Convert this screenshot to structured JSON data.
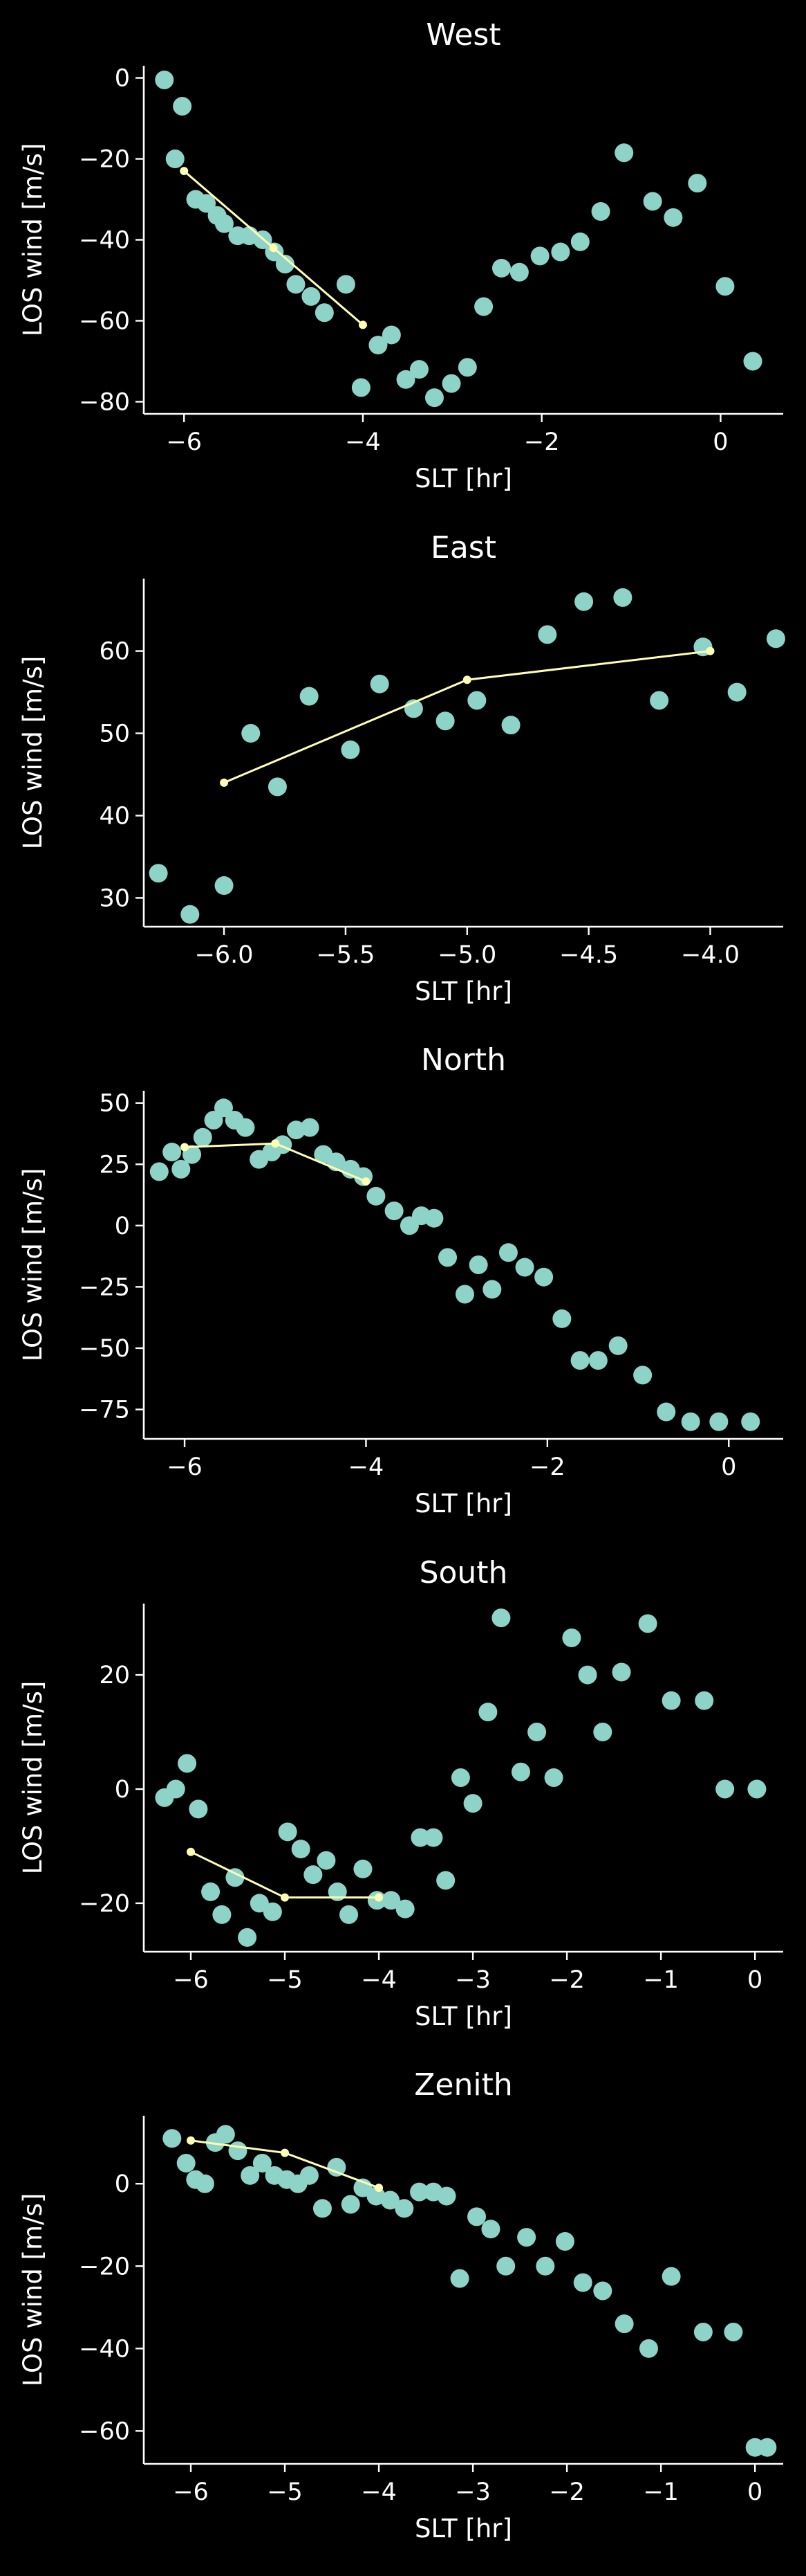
{
  "colors": {
    "background": "#000000",
    "scatter": "#8dd3c7",
    "line": "#ffffb3",
    "text": "#ffffff"
  },
  "chart_data": [
    {
      "type": "scatter",
      "title": "West",
      "xlabel": "SLT [hr]",
      "ylabel": "LOS wind [m/s]",
      "xlim": [
        -6.45,
        0.7
      ],
      "ylim": [
        -83,
        3
      ],
      "xticks": [
        -6,
        -4,
        -2,
        0
      ],
      "yticks": [
        -80,
        -60,
        -40,
        -20,
        0
      ],
      "series": [
        {
          "kind": "scatter",
          "x": [
            -6.22,
            -6.02,
            -6.1,
            -5.87,
            -5.75,
            -5.63,
            -5.55,
            -5.4,
            -5.27,
            -5.12,
            -4.99,
            -4.87,
            -4.75,
            -4.58,
            -4.43,
            -4.19,
            -4.02,
            -3.83,
            -3.68,
            -3.52,
            -3.37,
            -3.2,
            -3.01,
            -2.83,
            -2.65,
            -2.45,
            -2.25,
            -2.02,
            -1.79,
            -1.57,
            -1.34,
            -1.08,
            -0.76,
            -0.53,
            -0.26,
            0.05,
            0.36
          ],
          "y": [
            -0.5,
            -7,
            -20,
            -30,
            -31,
            -34,
            -36,
            -39,
            -39,
            -40,
            -43,
            -46,
            -51,
            -54,
            -58,
            -51,
            -76.5,
            -66,
            -63.5,
            -74.5,
            -72,
            -79,
            -75.5,
            -71.5,
            -56.5,
            -47,
            -48,
            -44,
            -43,
            -40.5,
            -33,
            -18.5,
            -30.5,
            -34.5,
            -26,
            -51.5,
            -70
          ]
        },
        {
          "kind": "line",
          "x": [
            -6.0,
            -5.0,
            -4.0
          ],
          "y": [
            -23,
            -42,
            -61
          ]
        }
      ]
    },
    {
      "type": "scatter",
      "title": "East",
      "xlabel": "SLT [hr]",
      "ylabel": "LOS wind [m/s]",
      "xlim": [
        -6.33,
        -3.7
      ],
      "ylim": [
        26.5,
        68.8
      ],
      "xticks": [
        -6.0,
        -5.5,
        -5.0,
        -4.5,
        -4.0
      ],
      "xtick_labels": [
        "−6.0",
        "−5.5",
        "−5.0",
        "−4.5",
        "−4.0"
      ],
      "yticks": [
        30,
        40,
        50,
        60
      ],
      "series": [
        {
          "kind": "scatter",
          "x": [
            -6.27,
            -6.14,
            -6.0,
            -5.89,
            -5.78,
            -5.65,
            -5.48,
            -5.36,
            -5.22,
            -5.09,
            -4.96,
            -4.82,
            -4.67,
            -4.52,
            -4.36,
            -4.21,
            -4.03,
            -3.89,
            -3.73
          ],
          "y": [
            33,
            28,
            31.5,
            50,
            43.5,
            54.5,
            48,
            56,
            53,
            51.5,
            54,
            51,
            62,
            66,
            66.5,
            54,
            60.5,
            55,
            61.5
          ]
        },
        {
          "kind": "line",
          "x": [
            -6.0,
            -5.0,
            -4.0
          ],
          "y": [
            44,
            56.5,
            60
          ]
        }
      ]
    },
    {
      "type": "scatter",
      "title": "North",
      "xlabel": "SLT [hr]",
      "ylabel": "LOS wind [m/s]",
      "xlim": [
        -6.45,
        0.6
      ],
      "ylim": [
        -87,
        55
      ],
      "xticks": [
        -6,
        -4,
        -2,
        0
      ],
      "yticks": [
        -75,
        -50,
        -25,
        0,
        25,
        50
      ],
      "series": [
        {
          "kind": "scatter",
          "x": [
            -6.28,
            -6.14,
            -6.04,
            -5.92,
            -5.8,
            -5.68,
            -5.57,
            -5.45,
            -5.33,
            -5.18,
            -5.04,
            -4.92,
            -4.77,
            -4.62,
            -4.47,
            -4.33,
            -4.17,
            -4.03,
            -3.89,
            -3.69,
            -3.52,
            -3.39,
            -3.25,
            -3.1,
            -2.91,
            -2.76,
            -2.61,
            -2.43,
            -2.25,
            -2.04,
            -1.84,
            -1.64,
            -1.44,
            -1.22,
            -0.95,
            -0.69,
            -0.42,
            -0.11,
            0.24
          ],
          "y": [
            22,
            30,
            23,
            29,
            36,
            43,
            48,
            43,
            40,
            27,
            30,
            33,
            39,
            40,
            29,
            26,
            23,
            20,
            12,
            6,
            0,
            4,
            3,
            -13,
            -28,
            -16,
            -26,
            -11,
            -17,
            -21,
            -38,
            -55,
            -55,
            -49,
            -61,
            -76,
            -80,
            -80,
            -80
          ]
        },
        {
          "kind": "line",
          "x": [
            -6.0,
            -5.0,
            -4.0
          ],
          "y": [
            32,
            33.5,
            18
          ]
        }
      ]
    },
    {
      "type": "scatter",
      "title": "South",
      "xlabel": "SLT [hr]",
      "ylabel": "LOS wind [m/s]",
      "xlim": [
        -6.5,
        0.3
      ],
      "ylim": [
        -28.5,
        32.5
      ],
      "xticks": [
        -6,
        -5,
        -4,
        -3,
        -2,
        -1,
        0
      ],
      "yticks": [
        -20,
        0,
        20
      ],
      "series": [
        {
          "kind": "scatter",
          "x": [
            -6.28,
            -6.16,
            -6.04,
            -5.92,
            -5.79,
            -5.67,
            -5.53,
            -5.4,
            -5.27,
            -5.13,
            -4.97,
            -4.83,
            -4.7,
            -4.56,
            -4.44,
            -4.32,
            -4.17,
            -4.02,
            -3.87,
            -3.72,
            -3.56,
            -3.42,
            -3.29,
            -3.13,
            -3.0,
            -2.84,
            -2.7,
            -2.49,
            -2.32,
            -2.14,
            -1.95,
            -1.78,
            -1.62,
            -1.42,
            -1.14,
            -0.89,
            -0.54,
            -0.32,
            0.02
          ],
          "y": [
            -1.5,
            0,
            4.5,
            -3.5,
            -18,
            -22,
            -15.5,
            -26,
            -20,
            -21.5,
            -7.5,
            -10.5,
            -15,
            -12.5,
            -18,
            -22,
            -14,
            -19.5,
            -19.5,
            -21,
            -8.5,
            -8.5,
            -16,
            2,
            -2.5,
            13.5,
            30,
            3,
            10,
            2,
            26.5,
            20,
            10,
            20.5,
            29,
            15.5,
            15.5,
            0,
            0
          ]
        },
        {
          "kind": "line",
          "x": [
            -6.0,
            -5.0,
            -4.0
          ],
          "y": [
            -11,
            -19,
            -19
          ]
        }
      ]
    },
    {
      "type": "scatter",
      "title": "Zenith",
      "xlabel": "SLT [hr]",
      "ylabel": "LOS wind [m/s]",
      "xlim": [
        -6.5,
        0.3
      ],
      "ylim": [
        -68,
        16.5
      ],
      "xticks": [
        -6,
        -5,
        -4,
        -3,
        -2,
        -1,
        0
      ],
      "yticks": [
        -60,
        -40,
        -20,
        0
      ],
      "series": [
        {
          "kind": "scatter",
          "x": [
            -6.2,
            -6.05,
            -5.95,
            -5.85,
            -5.74,
            -5.63,
            -5.5,
            -5.37,
            -5.24,
            -5.11,
            -4.98,
            -4.86,
            -4.74,
            -4.6,
            -4.45,
            -4.3,
            -4.17,
            -4.03,
            -3.88,
            -3.73,
            -3.57,
            -3.42,
            -3.28,
            -3.14,
            -2.96,
            -2.81,
            -2.65,
            -2.43,
            -2.23,
            -2.02,
            -1.83,
            -1.62,
            -1.39,
            -1.13,
            -0.89,
            -0.55,
            -0.23,
            0.0,
            0.13
          ],
          "y": [
            11,
            5,
            1,
            0,
            10,
            12,
            8,
            2,
            5,
            2,
            1,
            0,
            2,
            -6,
            4,
            -5,
            -1,
            -3,
            -4,
            -6,
            -2,
            -2,
            -3,
            -23,
            -8,
            -11,
            -20,
            -13,
            -20,
            -14,
            -24,
            -26,
            -34,
            -40,
            -22.5,
            -36,
            -36,
            -64,
            -64
          ]
        },
        {
          "kind": "line",
          "x": [
            -6.0,
            -5.0,
            -4.0
          ],
          "y": [
            10.5,
            7.5,
            -1
          ]
        }
      ]
    }
  ]
}
